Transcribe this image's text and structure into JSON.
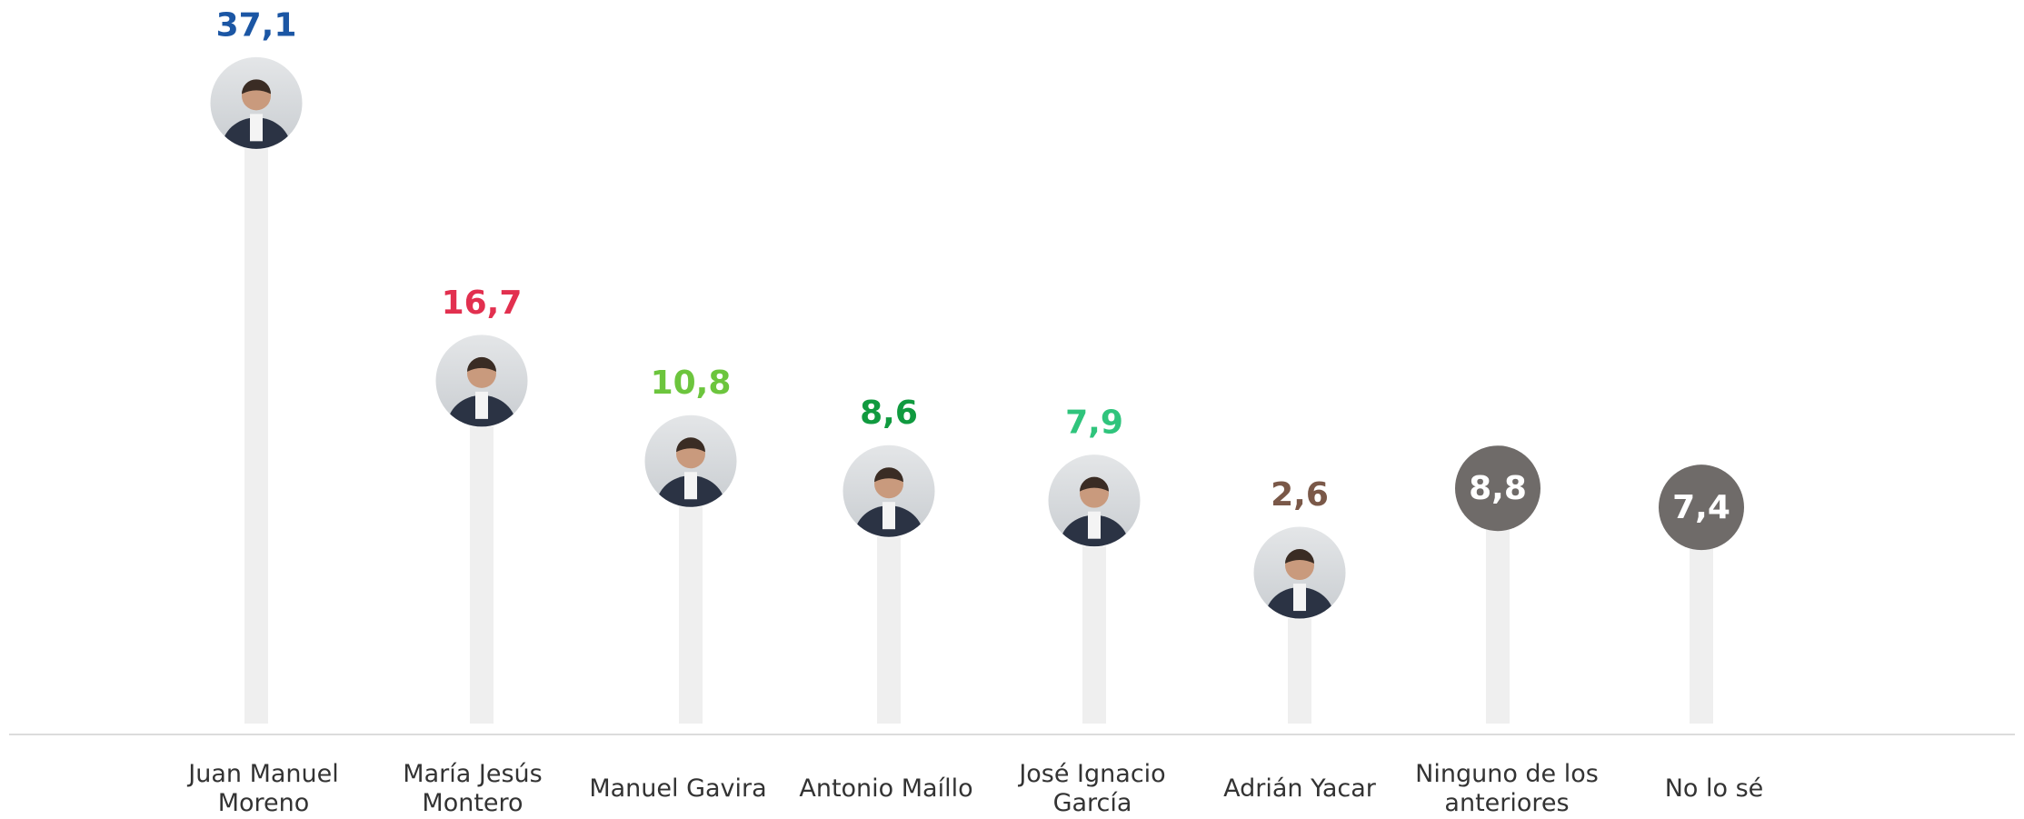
{
  "chart_data": {
    "type": "lollipop",
    "categories": [
      "Juan Manuel Moreno",
      "María Jesús Montero",
      "Manuel Gavira",
      "Antonio Maíllo",
      "José Ignacio García",
      "Adrián Yacar",
      "Ninguno de los anteriores",
      "No lo sé"
    ],
    "values": [
      37.1,
      16.7,
      10.8,
      8.6,
      7.9,
      2.6,
      8.8,
      7.4
    ],
    "value_labels": [
      "37,1",
      "16,7",
      "10,8",
      "8,6",
      "7,9",
      "2,6",
      "8,8",
      "7,4"
    ],
    "colors": [
      "#1b56a4",
      "#e2304f",
      "#6cc53d",
      "#109a3f",
      "#2fc47c",
      "#7a5848",
      "#6f6b69",
      "#6f6b69"
    ],
    "markers": [
      "photo",
      "photo",
      "photo",
      "photo",
      "photo",
      "photo",
      "label",
      "label"
    ],
    "ylim": [
      0,
      44
    ]
  }
}
